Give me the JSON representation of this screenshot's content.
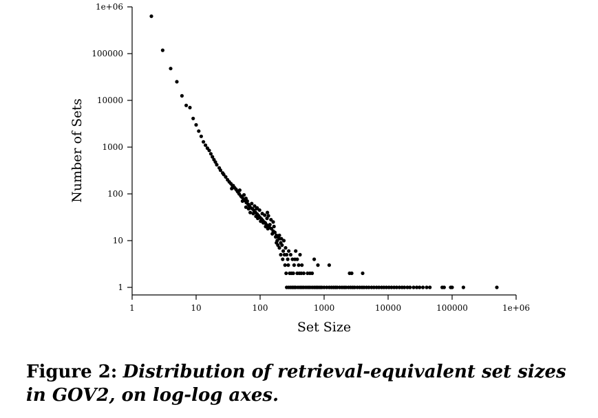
{
  "chart_data": {
    "type": "scatter",
    "xscale": "log",
    "yscale": "log",
    "xlim": [
      1,
      1000000
    ],
    "ylim": [
      1,
      1000000
    ],
    "xlabel": "Set Size",
    "ylabel": "Number of Sets",
    "x_ticks": [
      1,
      10,
      100,
      1000,
      10000,
      100000,
      1000000
    ],
    "x_tick_labels": [
      "1",
      "10",
      "100",
      "1000",
      "10000",
      "100000",
      "1e+06"
    ],
    "y_ticks": [
      1,
      10,
      100,
      1000,
      10000,
      100000,
      1000000
    ],
    "y_tick_labels": [
      "1",
      "10",
      "100",
      "1000",
      "10000",
      "100000",
      "1e+06"
    ],
    "grid": false,
    "legend": "none",
    "marker_color": "#000000",
    "points": [
      [
        2,
        630000
      ],
      [
        3,
        118000
      ],
      [
        4,
        48000
      ],
      [
        5,
        25000
      ],
      [
        6,
        12500
      ],
      [
        7,
        7800
      ],
      [
        8,
        7000
      ],
      [
        9,
        4100
      ],
      [
        10,
        3000
      ],
      [
        11,
        2200
      ],
      [
        12,
        1700
      ],
      [
        13,
        1300
      ],
      [
        14,
        1100
      ],
      [
        15,
        950
      ],
      [
        16,
        850
      ],
      [
        17,
        720
      ],
      [
        18,
        620
      ],
      [
        19,
        540
      ],
      [
        20,
        480
      ],
      [
        21,
        420
      ],
      [
        23,
        360
      ],
      [
        24,
        320
      ],
      [
        26,
        280
      ],
      [
        27,
        260
      ],
      [
        29,
        230
      ],
      [
        31,
        200
      ],
      [
        33,
        180
      ],
      [
        35,
        165
      ],
      [
        37,
        150
      ],
      [
        40,
        135
      ],
      [
        42,
        125
      ],
      [
        44,
        115
      ],
      [
        47,
        100
      ],
      [
        50,
        90
      ],
      [
        52,
        85
      ],
      [
        55,
        78
      ],
      [
        58,
        72
      ],
      [
        61,
        65
      ],
      [
        65,
        60
      ],
      [
        68,
        55
      ],
      [
        72,
        50
      ],
      [
        76,
        48
      ],
      [
        80,
        44
      ],
      [
        85,
        40
      ],
      [
        90,
        37
      ],
      [
        95,
        34
      ],
      [
        100,
        31
      ],
      [
        105,
        29
      ],
      [
        110,
        27
      ],
      [
        115,
        25
      ],
      [
        120,
        24
      ],
      [
        125,
        22
      ],
      [
        130,
        21
      ],
      [
        140,
        19
      ],
      [
        150,
        18
      ],
      [
        160,
        16
      ],
      [
        170,
        15
      ],
      [
        180,
        13
      ],
      [
        190,
        12
      ],
      [
        200,
        11
      ],
      [
        36,
        130
      ],
      [
        38,
        150
      ],
      [
        45,
        110
      ],
      [
        48,
        120
      ],
      [
        53,
        70
      ],
      [
        56,
        95
      ],
      [
        60,
        80
      ],
      [
        63,
        70
      ],
      [
        66,
        48
      ],
      [
        70,
        40
      ],
      [
        74,
        62
      ],
      [
        78,
        38
      ],
      [
        82,
        55
      ],
      [
        86,
        33
      ],
      [
        88,
        48
      ],
      [
        92,
        30
      ],
      [
        98,
        45
      ],
      [
        102,
        26
      ],
      [
        108,
        38
      ],
      [
        112,
        24
      ],
      [
        118,
        35
      ],
      [
        122,
        20
      ],
      [
        128,
        30
      ],
      [
        132,
        18
      ],
      [
        135,
        34
      ],
      [
        142,
        22
      ],
      [
        148,
        28
      ],
      [
        155,
        14
      ],
      [
        160,
        25
      ],
      [
        165,
        20
      ],
      [
        175,
        12
      ],
      [
        185,
        10
      ],
      [
        60,
        52
      ],
      [
        90,
        50
      ],
      [
        130,
        40
      ],
      [
        180,
        9
      ],
      [
        190,
        8
      ],
      [
        200,
        7
      ],
      [
        210,
        9
      ],
      [
        220,
        8
      ],
      [
        230,
        6
      ],
      [
        240,
        5
      ],
      [
        250,
        7
      ],
      [
        260,
        5
      ],
      [
        270,
        4
      ],
      [
        280,
        6
      ],
      [
        300,
        5
      ],
      [
        320,
        4
      ],
      [
        340,
        3
      ],
      [
        360,
        6
      ],
      [
        380,
        4
      ],
      [
        400,
        3
      ],
      [
        420,
        5
      ],
      [
        450,
        3
      ],
      [
        200,
        13
      ],
      [
        215,
        11
      ],
      [
        235,
        10
      ],
      [
        210,
        5
      ],
      [
        225,
        4
      ],
      [
        245,
        3
      ],
      [
        255,
        2
      ],
      [
        275,
        3
      ],
      [
        290,
        2
      ],
      [
        310,
        2
      ],
      [
        330,
        2
      ],
      [
        350,
        4
      ],
      [
        380,
        2
      ],
      [
        410,
        2
      ],
      [
        440,
        2
      ],
      [
        480,
        2
      ],
      [
        550,
        2
      ],
      [
        600,
        2
      ],
      [
        650,
        2
      ],
      [
        700,
        4
      ],
      [
        800,
        3
      ],
      [
        1200,
        3
      ],
      [
        2500,
        2
      ],
      [
        2700,
        2
      ],
      [
        4000,
        2
      ],
      [
        260,
        1
      ],
      [
        280,
        1
      ],
      [
        300,
        1
      ],
      [
        320,
        1
      ],
      [
        340,
        1
      ],
      [
        360,
        1
      ],
      [
        390,
        1
      ],
      [
        420,
        1
      ],
      [
        450,
        1
      ],
      [
        480,
        1
      ],
      [
        520,
        1
      ],
      [
        560,
        1
      ],
      [
        600,
        1
      ],
      [
        650,
        1
      ],
      [
        700,
        1
      ],
      [
        750,
        1
      ],
      [
        800,
        1
      ],
      [
        860,
        1
      ],
      [
        920,
        1
      ],
      [
        1000,
        1
      ],
      [
        1100,
        1
      ],
      [
        1200,
        1
      ],
      [
        1300,
        1
      ],
      [
        1400,
        1
      ],
      [
        1500,
        1
      ],
      [
        1600,
        1
      ],
      [
        1750,
        1
      ],
      [
        1900,
        1
      ],
      [
        2050,
        1
      ],
      [
        2200,
        1
      ],
      [
        2400,
        1
      ],
      [
        2600,
        1
      ],
      [
        2800,
        1
      ],
      [
        3000,
        1
      ],
      [
        3300,
        1
      ],
      [
        3600,
        1
      ],
      [
        3900,
        1
      ],
      [
        4200,
        1
      ],
      [
        4600,
        1
      ],
      [
        5000,
        1
      ],
      [
        5500,
        1
      ],
      [
        6000,
        1
      ],
      [
        6600,
        1
      ],
      [
        7200,
        1
      ],
      [
        7900,
        1
      ],
      [
        8600,
        1
      ],
      [
        9400,
        1
      ],
      [
        10300,
        1
      ],
      [
        11300,
        1
      ],
      [
        12400,
        1
      ],
      [
        13600,
        1
      ],
      [
        15000,
        1
      ],
      [
        16500,
        1
      ],
      [
        18000,
        1
      ],
      [
        20000,
        1
      ],
      [
        22000,
        1
      ],
      [
        25000,
        1
      ],
      [
        28000,
        1
      ],
      [
        31000,
        1
      ],
      [
        35000,
        1
      ],
      [
        40000,
        1
      ],
      [
        45000,
        1
      ],
      [
        70000,
        1
      ],
      [
        75000,
        1
      ],
      [
        95000,
        1
      ],
      [
        100000,
        1
      ],
      [
        150000,
        1
      ],
      [
        500000,
        1
      ]
    ]
  },
  "caption": {
    "figure_number": "Figure 2:",
    "text": "Distribution of retrieval-equivalent set sizes in GOV2, on log-log axes."
  }
}
